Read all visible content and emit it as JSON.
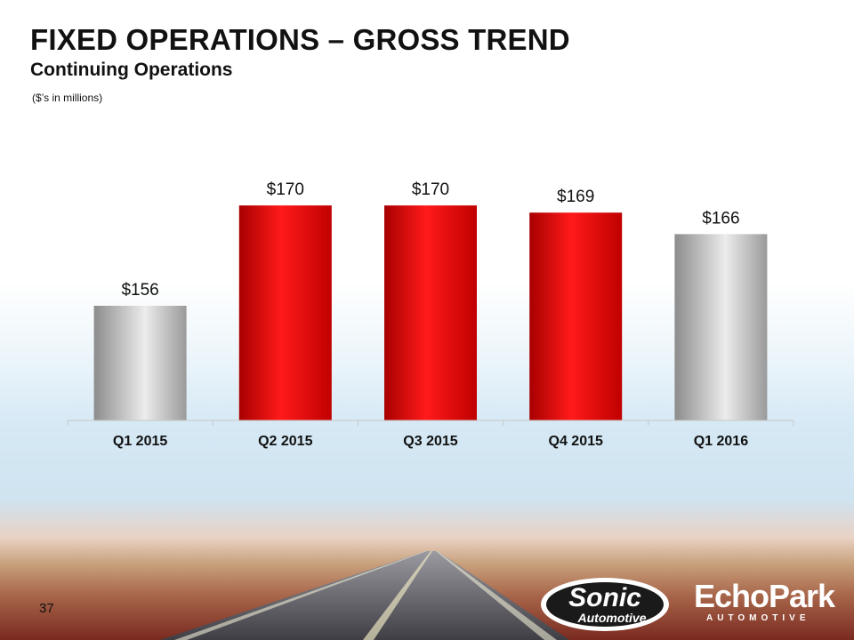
{
  "slide": {
    "title": "FIXED OPERATIONS – GROSS TREND",
    "subtitle": "Continuing Operations",
    "units_note": "($’s in millions)",
    "page_number": "37"
  },
  "logos": {
    "sonic": "Sonic Automotive",
    "echopark": "EchoPark",
    "echopark_sub": "AUTOMOTIVE"
  },
  "colors": {
    "highlight_bar": "#e10000",
    "baseline_bar": "#b8b8b8",
    "text": "#111111"
  },
  "chart_data": {
    "type": "bar",
    "categories": [
      "Q1 2015",
      "Q2 2015",
      "Q3 2015",
      "Q4 2015",
      "Q1 2016"
    ],
    "values": [
      156,
      170,
      170,
      169,
      166
    ],
    "data_labels": [
      "$156",
      "$170",
      "$170",
      "$169",
      "$166"
    ],
    "bar_styles": [
      "silver",
      "red",
      "red",
      "red",
      "silver"
    ],
    "ylim": [
      140,
      172
    ],
    "grid": false,
    "legend": "none"
  }
}
